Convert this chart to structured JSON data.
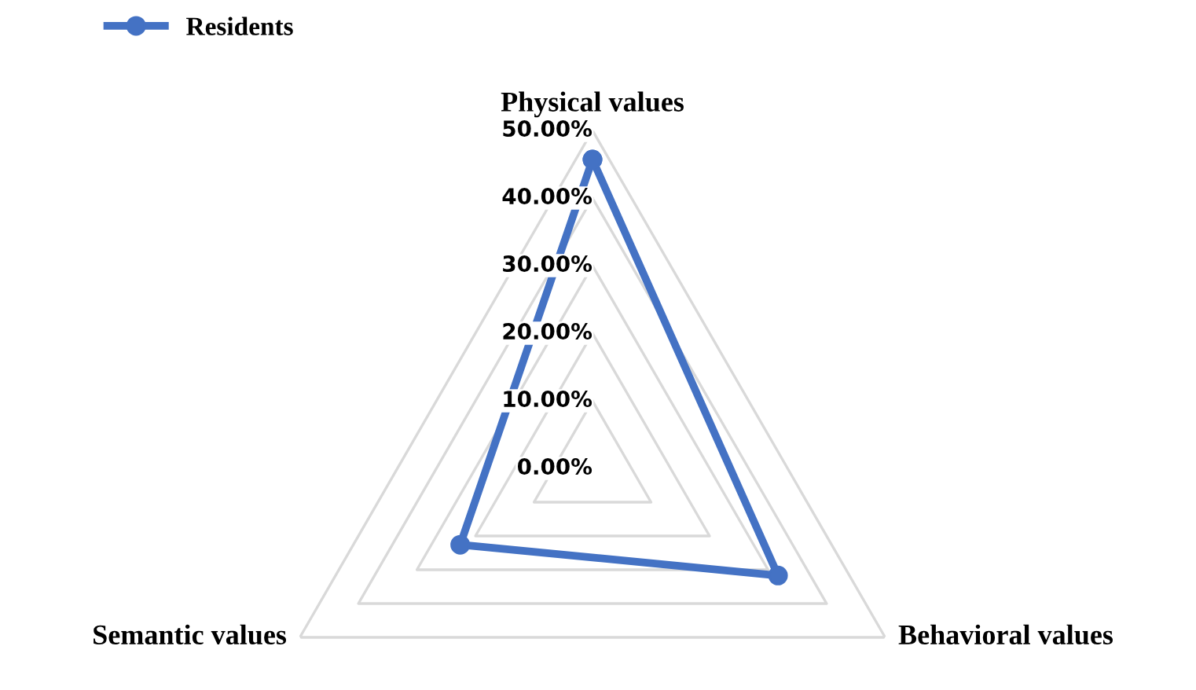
{
  "chart_data": {
    "type": "radar",
    "categories": [
      "Physical values",
      "Behavioral values",
      "Semantic values"
    ],
    "series": [
      {
        "name": "Residents",
        "color": "#4472c4",
        "values": [
          45.7,
          31.7,
          22.6
        ]
      }
    ],
    "ylim": [
      0,
      50
    ],
    "yticks": [
      {
        "value": 0,
        "label": "0.00%"
      },
      {
        "value": 10,
        "label": "10.00%"
      },
      {
        "value": 20,
        "label": "20.00%"
      },
      {
        "value": 30,
        "label": "30.00%"
      },
      {
        "value": 40,
        "label": "40.00%"
      },
      {
        "value": 50,
        "label": "50.00%"
      }
    ],
    "grid": true,
    "legend": "top left",
    "marker": "circle",
    "line_style": "solid"
  }
}
